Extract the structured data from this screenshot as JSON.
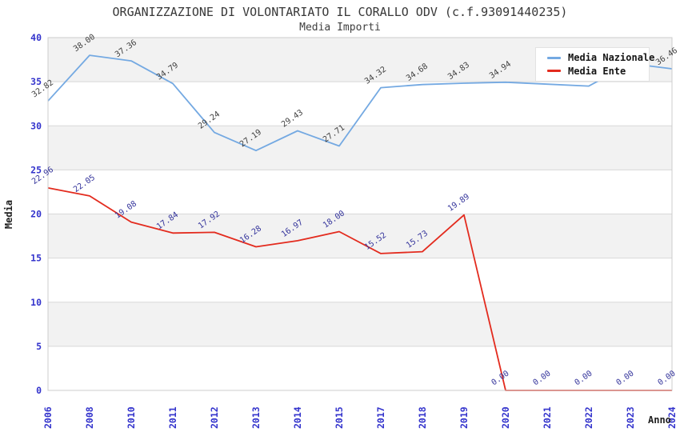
{
  "chart_data": {
    "type": "line",
    "title": "ORGANIZZAZIONE DI VOLONTARIATO IL CORALLO ODV (c.f.93091440235)",
    "subtitle": "Media Importi",
    "xlabel": "Anno",
    "ylabel": "Media",
    "ylim": [
      0,
      40
    ],
    "y_ticks": [
      "0",
      "5",
      "10",
      "15",
      "20",
      "25",
      "30",
      "35",
      "40"
    ],
    "grid": "horizontal-gridlines-with-alternating-bands",
    "legend_position": "top-right",
    "categories": [
      "2006",
      "2008",
      "2010",
      "2011",
      "2012",
      "2013",
      "2014",
      "2015",
      "2017",
      "2018",
      "2019",
      "2020",
      "2021",
      "2022",
      "2023",
      "2024"
    ],
    "series": [
      {
        "name": "Media Nazionale",
        "color": "#74A9E2",
        "label_color": "#3F3F3F",
        "values": [
          32.82,
          38.0,
          37.36,
          34.79,
          29.24,
          27.19,
          29.43,
          27.71,
          34.32,
          34.68,
          34.83,
          34.94,
          34.72,
          34.5,
          37.05,
          36.46
        ],
        "point_labels": [
          "32.82",
          "38.00",
          "37.36",
          "34.79",
          "29.24",
          "27.19",
          "29.43",
          "27.71",
          "34.32",
          "34.68",
          "34.83",
          "34.94",
          "",
          "",
          "",
          "36.46"
        ]
      },
      {
        "name": "Media Ente",
        "color": "#E32B1E",
        "label_color": "#33339B",
        "values": [
          22.96,
          22.05,
          19.08,
          17.84,
          17.92,
          16.28,
          16.97,
          18.0,
          15.52,
          15.73,
          19.89,
          0,
          0,
          0,
          0,
          0
        ],
        "point_labels": [
          "22.96",
          "22.05",
          "19.08",
          "17.84",
          "17.92",
          "16.28",
          "16.97",
          "18.00",
          "15.52",
          "15.73",
          "19.89",
          "0.00",
          "0.00",
          "0.00",
          "0.00",
          "0.00"
        ]
      }
    ],
    "colors": {
      "tick": "#3333CC",
      "band": "#F2F2F2",
      "grid": "#D8D8D8",
      "border": "#CCCCCC",
      "axis_title": "#1E1E1E"
    }
  }
}
